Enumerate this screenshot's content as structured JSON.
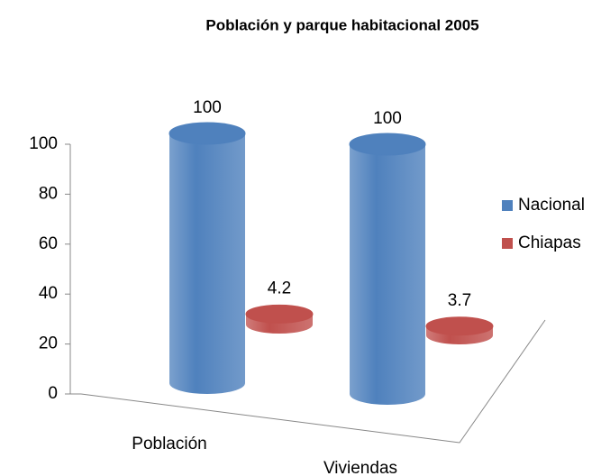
{
  "chart_data": {
    "type": "bar3d",
    "title": "Población y parque habitacional 2005",
    "categories": [
      "Población",
      "Viviendas"
    ],
    "series": [
      {
        "name": "Nacional",
        "color": "#4f81bd",
        "values": [
          100,
          100
        ]
      },
      {
        "name": "Chiapas",
        "color": "#c0504d",
        "values": [
          4.2,
          3.7
        ]
      }
    ],
    "ylim": [
      0,
      100
    ],
    "yticks": [
      0,
      20,
      40,
      60,
      80,
      100
    ],
    "legend": "right"
  }
}
